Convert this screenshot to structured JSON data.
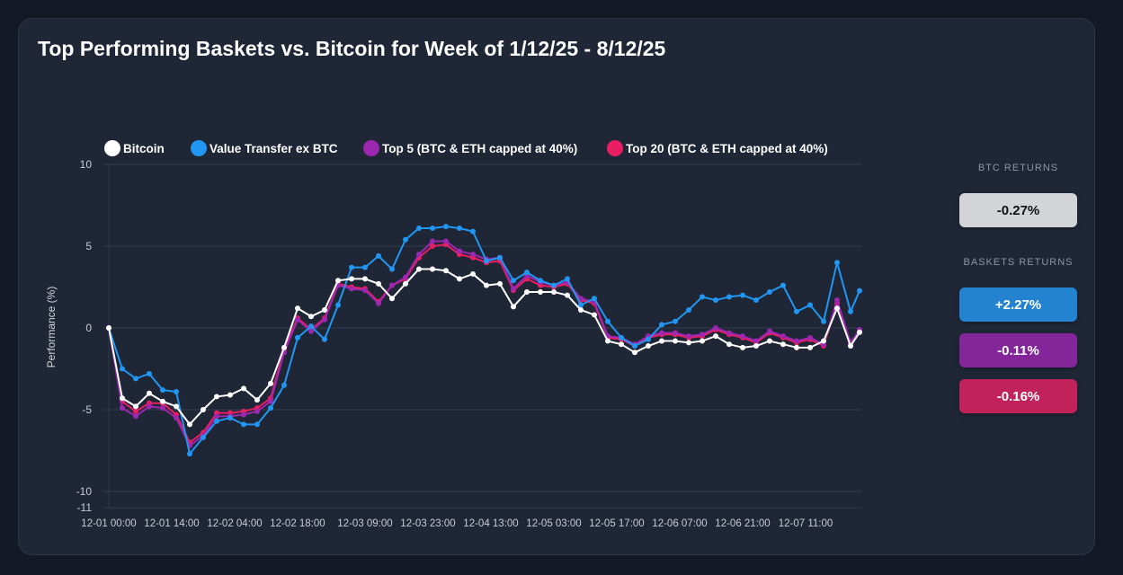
{
  "title": "Top Performing Baskets vs. Bitcoin for Week of 1/12/25 - 8/12/25",
  "side_panel": {
    "btc_label": "BTC RETURNS",
    "btc_value": "-0.27%",
    "baskets_label": "BASKETS RETURNS",
    "baskets": [
      {
        "value": "+2.27%",
        "color": "#2383d1"
      },
      {
        "value": "-0.11%",
        "color": "#83269a"
      },
      {
        "value": "-0.16%",
        "color": "#c02259"
      }
    ],
    "btc_color": "#d2d4d7"
  },
  "chart_data": {
    "type": "line",
    "title": "",
    "xlabel": "",
    "ylabel": "Performance (%)",
    "ylim": [
      -11,
      10
    ],
    "yticks": [
      10,
      5,
      0,
      -5,
      -10,
      -11
    ],
    "grid": true,
    "legend_position": "top",
    "xtick_labels": [
      "12-01 00:00",
      "12-01 14:00",
      "12-02 04:00",
      "12-02 18:00",
      "12-03 09:00",
      "12-03 23:00",
      "12-04 13:00",
      "12-05 03:00",
      "12-05 17:00",
      "12-06 07:00",
      "12-06 21:00",
      "12-07 11:00"
    ],
    "x": [
      "12-01 00:00",
      "12-01 03:00",
      "12-01 06:00",
      "12-01 09:00",
      "12-01 12:00",
      "12-01 15:00",
      "12-01 18:00",
      "12-01 21:00",
      "12-02 00:00",
      "12-02 03:00",
      "12-02 06:00",
      "12-02 09:00",
      "12-02 12:00",
      "12-02 15:00",
      "12-02 18:00",
      "12-02 21:00",
      "12-03 00:00",
      "12-03 03:00",
      "12-03 06:00",
      "12-03 09:00",
      "12-03 12:00",
      "12-03 15:00",
      "12-03 18:00",
      "12-03 21:00",
      "12-04 00:00",
      "12-04 03:00",
      "12-04 06:00",
      "12-04 09:00",
      "12-04 12:00",
      "12-04 15:00",
      "12-04 18:00",
      "12-04 21:00",
      "12-05 00:00",
      "12-05 03:00",
      "12-05 06:00",
      "12-05 09:00",
      "12-05 12:00",
      "12-05 15:00",
      "12-05 18:00",
      "12-05 21:00",
      "12-06 00:00",
      "12-06 03:00",
      "12-06 06:00",
      "12-06 09:00",
      "12-06 12:00",
      "12-06 15:00",
      "12-06 18:00",
      "12-06 21:00",
      "12-07 00:00",
      "12-07 03:00",
      "12-07 06:00",
      "12-07 09:00",
      "12-07 12:00",
      "12-07 15:00",
      "12-07 18:00",
      "12-07 21:00",
      "12-07 23:00"
    ],
    "series": [
      {
        "name": "Bitcoin",
        "color": "#ffffff",
        "values": [
          0,
          -4.3,
          -4.8,
          -4.0,
          -4.5,
          -4.8,
          -5.9,
          -5.0,
          -4.2,
          -4.1,
          -3.7,
          -4.4,
          -3.4,
          -1.2,
          1.2,
          0.7,
          1.1,
          2.9,
          3.0,
          3.0,
          2.7,
          1.8,
          2.7,
          3.6,
          3.6,
          3.5,
          3.0,
          3.3,
          2.6,
          2.7,
          1.3,
          2.2,
          2.2,
          2.2,
          2.0,
          1.1,
          0.8,
          -0.8,
          -1.0,
          -1.5,
          -1.1,
          -0.8,
          -0.8,
          -0.9,
          -0.8,
          -0.5,
          -1.0,
          -1.2,
          -1.1,
          -0.8,
          -1.0,
          -1.2,
          -1.2,
          -0.8,
          1.2,
          -1.1,
          -0.27
        ]
      },
      {
        "name": "Value Transfer ex BTC",
        "color": "#2196f3",
        "values": [
          0,
          -2.5,
          -3.1,
          -2.8,
          -3.8,
          -3.9,
          -7.7,
          -6.7,
          -5.7,
          -5.5,
          -5.9,
          -5.9,
          -4.9,
          -3.5,
          -0.6,
          0.1,
          -0.7,
          1.4,
          3.7,
          3.7,
          4.4,
          3.6,
          5.4,
          6.1,
          6.1,
          6.2,
          6.1,
          5.9,
          4.1,
          4.3,
          2.9,
          3.4,
          2.9,
          2.6,
          3.0,
          1.4,
          1.8,
          0.4,
          -0.6,
          -1.1,
          -0.7,
          0.2,
          0.4,
          1.1,
          1.9,
          1.7,
          1.9,
          2.0,
          1.7,
          2.2,
          2.6,
          1.0,
          1.4,
          0.4,
          4.0,
          1.0,
          2.27
        ]
      },
      {
        "name": "Top 5 (BTC & ETH capped at 40%)",
        "color": "#9c27b0",
        "values": [
          0,
          -4.9,
          -5.4,
          -4.8,
          -4.9,
          -5.5,
          -7.2,
          -6.6,
          -5.4,
          -5.4,
          -5.3,
          -5.1,
          -4.5,
          -1.5,
          0.5,
          -0.2,
          0.5,
          2.6,
          2.4,
          2.3,
          1.5,
          2.6,
          3.1,
          4.5,
          5.3,
          5.3,
          4.7,
          4.5,
          4.2,
          4.3,
          2.4,
          3.2,
          2.8,
          2.6,
          2.8,
          1.8,
          1.6,
          -0.5,
          -0.6,
          -1.0,
          -0.5,
          -0.3,
          -0.3,
          -0.5,
          -0.4,
          0.0,
          -0.3,
          -0.5,
          -0.8,
          -0.2,
          -0.5,
          -0.8,
          -0.6,
          -1.0,
          1.7,
          -0.9,
          -0.11
        ]
      },
      {
        "name": "Top 20 (BTC & ETH capped at 40%)",
        "color": "#e91e63",
        "values": [
          0,
          -4.5,
          -5.1,
          -4.6,
          -4.6,
          -5.3,
          -7.0,
          -6.4,
          -5.2,
          -5.2,
          -5.1,
          -4.9,
          -4.3,
          -1.3,
          0.6,
          -0.1,
          0.6,
          2.7,
          2.5,
          2.4,
          1.6,
          2.6,
          3.0,
          4.3,
          5.0,
          5.1,
          4.5,
          4.3,
          4.0,
          4.1,
          2.3,
          3.0,
          2.6,
          2.5,
          2.7,
          1.7,
          1.5,
          -0.6,
          -0.7,
          -1.1,
          -0.6,
          -0.4,
          -0.4,
          -0.6,
          -0.5,
          -0.1,
          -0.4,
          -0.6,
          -0.9,
          -0.3,
          -0.6,
          -0.9,
          -0.7,
          -1.1,
          1.5,
          -1.0,
          -0.16
        ]
      }
    ]
  }
}
